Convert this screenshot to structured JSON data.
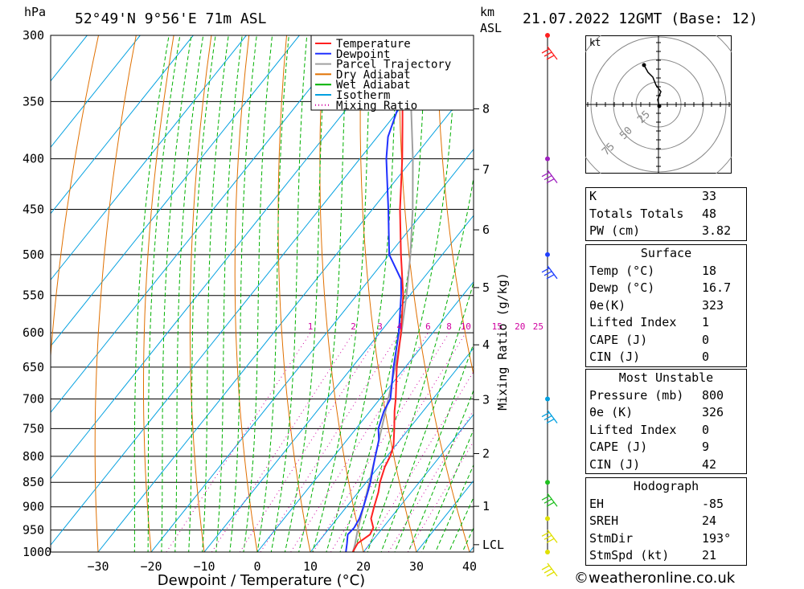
{
  "header": {
    "pressure_unit": "hPa",
    "location": "52°49'N  9°56'E  71m  ASL",
    "km_unit": "km",
    "km_unit2": "ASL",
    "datetime": "21.07.2022  12GMT  (Base: 12)"
  },
  "chart_data": {
    "type": "line",
    "title": "52°49'N  9°56'E  71m  ASL",
    "xlabel": "Dewpoint / Temperature (°C)",
    "ylabel": "hPa",
    "right_axis_label": "Mixing Ratio (g/kg)",
    "pressure_levels": [
      300,
      350,
      400,
      450,
      500,
      550,
      600,
      650,
      700,
      750,
      800,
      850,
      900,
      950,
      1000
    ],
    "temperature_ticks": [
      -30,
      -20,
      -10,
      0,
      10,
      20,
      30,
      40
    ],
    "km_ticks": [
      {
        "label": "8",
        "p": 356
      },
      {
        "label": "7",
        "p": 410
      },
      {
        "label": "6",
        "p": 472
      },
      {
        "label": "5",
        "p": 540
      },
      {
        "label": "4",
        "p": 617
      },
      {
        "label": "3",
        "p": 701
      },
      {
        "label": "2",
        "p": 795
      },
      {
        "label": "1",
        "p": 899
      },
      {
        "label": "LCL",
        "p": 983
      }
    ],
    "mixing_ratio_labels": [
      "1",
      "2",
      "3",
      "4",
      "6",
      "8",
      "10",
      "15",
      "20",
      "25"
    ],
    "legend": [
      "Temperature",
      "Dewpoint",
      "Parcel Trajectory",
      "Dry Adiabat",
      "Wet Adiabat",
      "Isotherm",
      "Mixing Ratio"
    ],
    "series": [
      {
        "name": "Temperature",
        "color": "#ff2020",
        "points": [
          [
            1000,
            18
          ],
          [
            980,
            17.6
          ],
          [
            960,
            18.6
          ],
          [
            945,
            18.2
          ],
          [
            925,
            16.4
          ],
          [
            900,
            15.2
          ],
          [
            870,
            13.8
          ],
          [
            850,
            12.6
          ],
          [
            820,
            11.2
          ],
          [
            800,
            10.6
          ],
          [
            780,
            9.6
          ],
          [
            750,
            7.2
          ],
          [
            720,
            4.6
          ],
          [
            700,
            3
          ],
          [
            650,
            -1.6
          ],
          [
            600,
            -6
          ],
          [
            550,
            -11.2
          ],
          [
            500,
            -17.8
          ],
          [
            450,
            -24.8
          ],
          [
            400,
            -32
          ],
          [
            370,
            -37
          ],
          [
            350,
            -40.6
          ],
          [
            320,
            -46
          ],
          [
            300,
            -50.5
          ]
        ]
      },
      {
        "name": "Dewpoint",
        "color": "#2030ff",
        "points": [
          [
            1000,
            16.7
          ],
          [
            980,
            15.6
          ],
          [
            960,
            14.4
          ],
          [
            945,
            14.6
          ],
          [
            925,
            14.2
          ],
          [
            900,
            13.2
          ],
          [
            870,
            11.8
          ],
          [
            850,
            10.8
          ],
          [
            820,
            9
          ],
          [
            800,
            7.8
          ],
          [
            770,
            6
          ],
          [
            750,
            4.2
          ],
          [
            720,
            2.6
          ],
          [
            700,
            2
          ],
          [
            650,
            -2.2
          ],
          [
            600,
            -6.4
          ],
          [
            550,
            -11.6
          ],
          [
            530,
            -14
          ],
          [
            500,
            -20
          ],
          [
            450,
            -27
          ],
          [
            400,
            -35
          ],
          [
            380,
            -38
          ],
          [
            350,
            -41
          ],
          [
            320,
            -46
          ],
          [
            300,
            -51
          ]
        ]
      },
      {
        "name": "Parcel Trajectory",
        "color": "#a0a0a0",
        "points": [
          [
            1000,
            18
          ],
          [
            983,
            17.3
          ],
          [
            950,
            15.6
          ],
          [
            900,
            13.2
          ],
          [
            850,
            10.6
          ],
          [
            800,
            7.8
          ],
          [
            750,
            4.8
          ],
          [
            700,
            1.6
          ],
          [
            650,
            -1.9
          ],
          [
            600,
            -5.9
          ],
          [
            550,
            -10.6
          ],
          [
            500,
            -16
          ],
          [
            450,
            -22.4
          ],
          [
            400,
            -30
          ],
          [
            350,
            -39
          ],
          [
            300,
            -50
          ]
        ]
      }
    ],
    "wind_barbs": [
      {
        "p": 300,
        "color": "#ff2020"
      },
      {
        "p": 400,
        "color": "#a020c0"
      },
      {
        "p": 500,
        "color": "#2040ff"
      },
      {
        "p": 700,
        "color": "#00a0e0"
      },
      {
        "p": 850,
        "color": "#20c020"
      },
      {
        "p": 925,
        "color": "#e0e000"
      },
      {
        "p": 1000,
        "color": "#e0e000"
      }
    ],
    "hodograph": {
      "unit": "kt",
      "ring_labels": [
        "25",
        "50",
        "75"
      ]
    },
    "grid": true
  },
  "indices": {
    "rows": [
      {
        "k": "K",
        "v": "33"
      },
      {
        "k": "Totals Totals",
        "v": "48"
      },
      {
        "k": "PW (cm)",
        "v": "3.82"
      }
    ]
  },
  "surface": {
    "title": "Surface",
    "rows": [
      {
        "k": "Temp (°C)",
        "v": "18"
      },
      {
        "k": "Dewp (°C)",
        "v": "16.7"
      },
      {
        "k": "θe(K)",
        "v": "323"
      },
      {
        "k": "Lifted Index",
        "v": "1"
      },
      {
        "k": "CAPE (J)",
        "v": "0"
      },
      {
        "k": "CIN (J)",
        "v": "0"
      }
    ]
  },
  "most_unstable": {
    "title": "Most Unstable",
    "rows": [
      {
        "k": "Pressure (mb)",
        "v": "800"
      },
      {
        "k": "θe (K)",
        "v": "326"
      },
      {
        "k": "Lifted Index",
        "v": "0"
      },
      {
        "k": "CAPE (J)",
        "v": "9"
      },
      {
        "k": "CIN (J)",
        "v": "42"
      }
    ]
  },
  "hodograph_table": {
    "title": "Hodograph",
    "rows": [
      {
        "k": "EH",
        "v": "-85"
      },
      {
        "k": "SREH",
        "v": "24"
      },
      {
        "k": "StmDir",
        "v": "193°"
      },
      {
        "k": "StmSpd (kt)",
        "v": "21"
      }
    ]
  },
  "credit": "©weatheronline.co.uk"
}
